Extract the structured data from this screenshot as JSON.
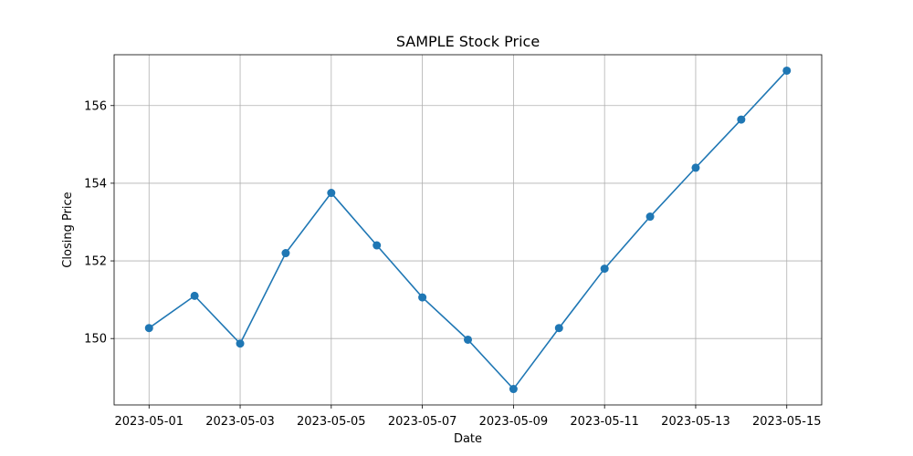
{
  "chart_data": {
    "type": "line",
    "title": "SAMPLE Stock Price",
    "xlabel": "Date",
    "ylabel": "Closing Price",
    "x": [
      "2023-05-01",
      "2023-05-02",
      "2023-05-03",
      "2023-05-04",
      "2023-05-05",
      "2023-05-06",
      "2023-05-07",
      "2023-05-08",
      "2023-05-09",
      "2023-05-10",
      "2023-05-11",
      "2023-05-12",
      "2023-05-13",
      "2023-05-14",
      "2023-05-15"
    ],
    "series": [
      {
        "values": [
          150.27,
          151.1,
          149.87,
          152.2,
          153.75,
          152.4,
          151.06,
          149.97,
          148.7,
          150.27,
          151.8,
          153.14,
          154.4,
          155.64,
          156.9
        ],
        "color": "#1f77b4"
      }
    ],
    "x_ticks": [
      "2023-05-01",
      "2023-05-03",
      "2023-05-05",
      "2023-05-07",
      "2023-05-09",
      "2023-05-11",
      "2023-05-13",
      "2023-05-15"
    ],
    "y_ticks": [
      "150",
      "152",
      "154",
      "156"
    ],
    "xlim": [
      "2023-04-30T05:36",
      "2023-05-15T18:24"
    ],
    "ylim": [
      148.29,
      157.31
    ],
    "grid": true
  }
}
